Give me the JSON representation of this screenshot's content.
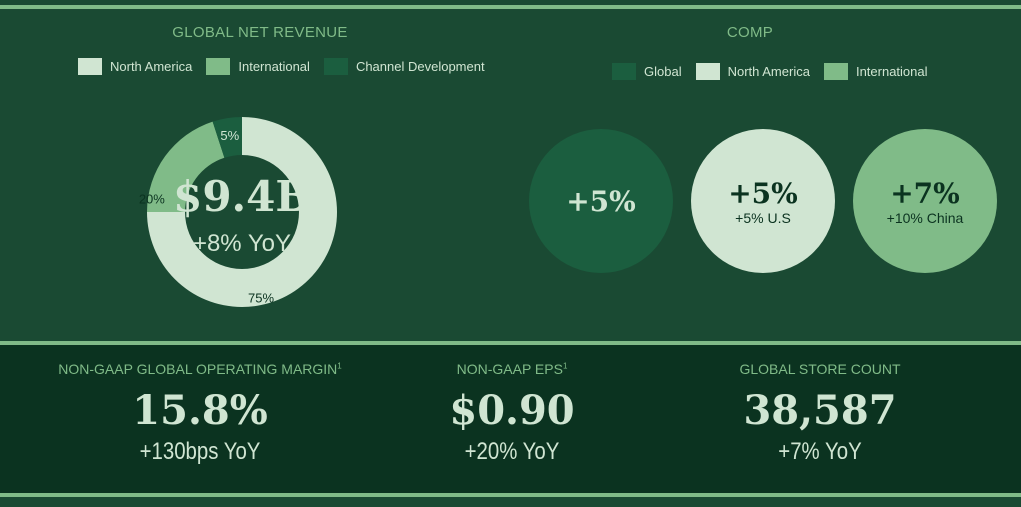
{
  "revenue": {
    "title": "GLOBAL NET REVENUE",
    "legend": [
      "North America",
      "International",
      "Channel Development"
    ],
    "total": "$9.4B",
    "growth": "+8% YoY",
    "segments": [
      {
        "name": "North America",
        "value": 75,
        "label": "75%",
        "color": "#d0e5d2"
      },
      {
        "name": "International",
        "value": 20,
        "label": "20%",
        "color": "#80bb88"
      },
      {
        "name": "Channel Development",
        "value": 5,
        "label": "5%",
        "color": "#1b5e3f"
      }
    ]
  },
  "comp": {
    "title": "COMP",
    "legend": [
      "Global",
      "North America",
      "International"
    ],
    "colors": [
      "#1b5e3f",
      "#d0e5d2",
      "#80bb88"
    ],
    "circles": [
      {
        "value": "+5%",
        "sub": ""
      },
      {
        "value": "+5%",
        "sub": "+5% U.S"
      },
      {
        "value": "+7%",
        "sub": "+10% China"
      }
    ]
  },
  "kpis": [
    {
      "label": "NON-GAAP GLOBAL OPERATING MARGIN",
      "sup": "1",
      "value": "15.8%",
      "sub": "+130bps YoY"
    },
    {
      "label": "NON-GAAP EPS",
      "sup": "1",
      "value": "$0.90",
      "sub": "+20% YoY"
    },
    {
      "label": "GLOBAL STORE COUNT",
      "sup": "",
      "value": "38,587",
      "sub": "+7% YoY"
    }
  ]
}
